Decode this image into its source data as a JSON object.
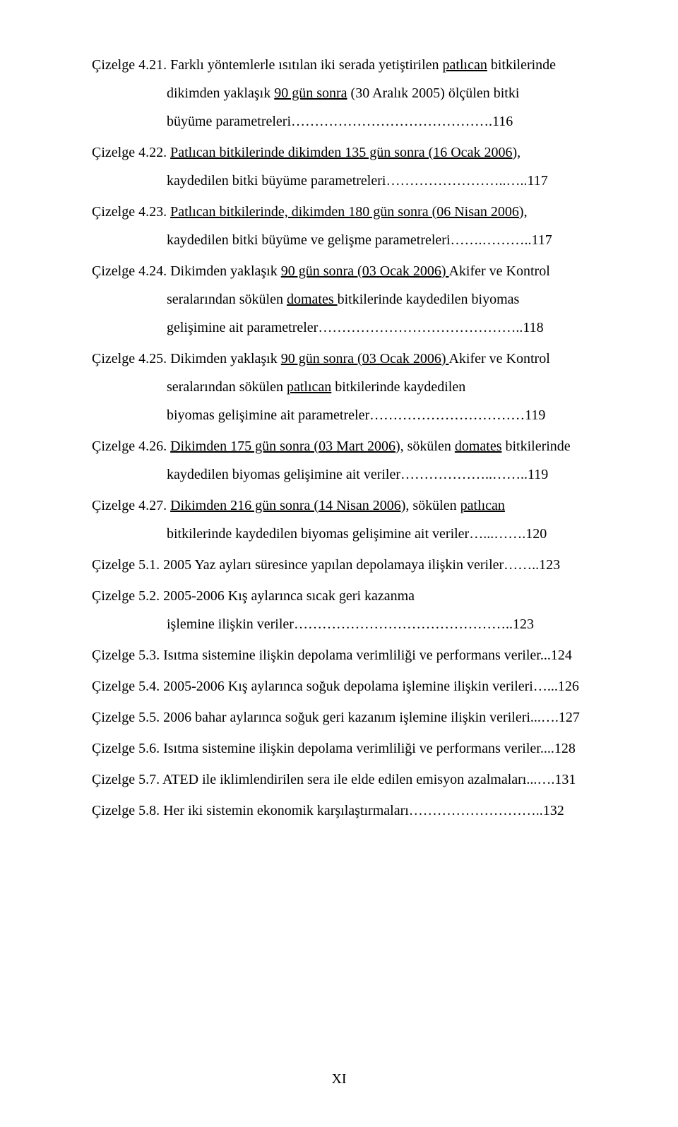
{
  "fontsize_pt": 12,
  "line_height": 2.0,
  "text_color": "#000000",
  "background_color": "#ffffff",
  "entries": [
    {
      "label": "Çizelge 4.21.",
      "segments": [
        [
          "Çizelge 4.21. Farklı yöntemlerle ısıtılan iki serada yetiştirilen ",
          false
        ],
        [
          "patlıcan",
          true
        ],
        [
          " bitkilerinde",
          false
        ]
      ],
      "cont": [
        [
          [
            "dikimden yaklaşık ",
            false
          ],
          [
            "90 gün sonra",
            true
          ],
          [
            " (30 Aralık 2005) ölçülen bitki",
            false
          ]
        ],
        [
          [
            " büyüme parametreleri…………………………………….116",
            false
          ]
        ]
      ],
      "page": "116"
    },
    {
      "label": "Çizelge 4.22.",
      "segments": [
        [
          "Çizelge 4.22. ",
          false
        ],
        [
          "Patlıcan bitkilerinde dikimden 135 gün sonra (16 Ocak 2006),",
          true
        ]
      ],
      "cont": [
        [
          [
            "kaydedilen bitki büyüme parametreleri……………………..…..117",
            false
          ]
        ]
      ],
      "page": "117"
    },
    {
      "label": "Çizelge 4.23.",
      "segments": [
        [
          "Çizelge 4.23. ",
          false
        ],
        [
          "Patlıcan bitkilerinde, dikimden 180 gün sonra (06 Nisan 2006),",
          true
        ]
      ],
      "cont": [
        [
          [
            "kaydedilen bitki büyüme ve gelişme parametreleri…….………..117",
            false
          ]
        ]
      ],
      "page": "117"
    },
    {
      "label": "Çizelge 4.24.",
      "segments": [
        [
          "Çizelge 4.24. Dikimden yaklaşık ",
          false
        ],
        [
          "90 gün sonra (03 Ocak 2006) ",
          true
        ],
        [
          "Akifer ve Kontrol",
          false
        ]
      ],
      "cont": [
        [
          [
            "seralarından sökülen ",
            false
          ],
          [
            "domates ",
            true
          ],
          [
            "bitkilerinde kaydedilen  biyomas",
            false
          ]
        ],
        [
          [
            "gelişimine ait parametreler……………………………………..118",
            false
          ]
        ]
      ],
      "page": "118"
    },
    {
      "label": "Çizelge 4.25.",
      "segments": [
        [
          "Çizelge 4.25. Dikimden yaklaşık ",
          false
        ],
        [
          "90 gün sonra (03 Ocak 2006) ",
          true
        ],
        [
          "Akifer ve Kontrol",
          false
        ]
      ],
      "cont": [
        [
          [
            "seralarından sökülen ",
            false
          ],
          [
            "patlıcan",
            true
          ],
          [
            " bitkilerinde kaydedilen",
            false
          ]
        ],
        [
          [
            "biyomas gelişimine ait parametreler……………………………119",
            false
          ]
        ]
      ],
      "page": "119"
    },
    {
      "label": "Çizelge 4.26.",
      "segments": [
        [
          "Çizelge 4.26. ",
          false
        ],
        [
          "Dikimden 175 gün sonra (03 Mart 2006),",
          true
        ],
        [
          " sökülen ",
          false
        ],
        [
          "domates",
          true
        ],
        [
          " bitkilerinde",
          false
        ]
      ],
      "cont": [
        [
          [
            "kaydedilen biyomas gelişimine ait veriler………………..……..119",
            false
          ]
        ]
      ],
      "page": "119"
    },
    {
      "label": "Çizelge 4.27.",
      "segments": [
        [
          "Çizelge 4.27. ",
          false
        ],
        [
          "Dikimden 216 gün sonra (14 Nisan 2006),",
          true
        ],
        [
          " sökülen ",
          false
        ],
        [
          "patlıcan",
          true
        ]
      ],
      "cont": [
        [
          [
            "bitkilerinde kaydedilen biyomas gelişimine ait veriler…...…….120",
            false
          ]
        ]
      ],
      "page": "120"
    },
    {
      "label": "Çizelge 5.1.",
      "segments": [
        [
          "Çizelge 5.1. 2005 Yaz ayları süresince yapılan depolamaya ilişkin veriler……..123",
          false
        ]
      ],
      "cont": [],
      "page": "123"
    },
    {
      "label": "Çizelge 5.2.",
      "segments": [
        [
          "Çizelge 5.2. 2005-2006 Kış aylarınca sıcak  geri kazanma",
          false
        ]
      ],
      "cont": [
        [
          [
            "işlemine ilişkin veriler………………………………………..123",
            false
          ]
        ]
      ],
      "page": "123"
    },
    {
      "label": "Çizelge 5.3.",
      "segments": [
        [
          "Çizelge 5.3. Isıtma sistemine ilişkin depolama verimliliği ve  performans veriler...124",
          false
        ]
      ],
      "cont": [],
      "page": "124"
    },
    {
      "label": "Çizelge 5.4.",
      "segments": [
        [
          "Çizelge 5.4. 2005-2006 Kış aylarınca soğuk depolama işlemine ilişkin verileri…...126",
          false
        ]
      ],
      "cont": [],
      "page": "126"
    },
    {
      "label": "Çizelge 5.5.",
      "segments": [
        [
          "Çizelge 5.5. 2006 bahar aylarınca soğuk geri kazanım işlemine ilişkin verileri...….127",
          false
        ]
      ],
      "cont": [],
      "page": "127"
    },
    {
      "label": "Çizelge 5.6.",
      "segments": [
        [
          "Çizelge 5.6. Isıtma sistemine ilişkin depolama verimliliği ve  performans veriler....128",
          false
        ]
      ],
      "cont": [],
      "page": "128"
    },
    {
      "label": "Çizelge 5.7.",
      "segments": [
        [
          "Çizelge 5.7. ATED ile iklimlendirilen sera ile elde edilen emisyon azalmaları...….131",
          false
        ]
      ],
      "cont": [],
      "page": "131"
    },
    {
      "label": "Çizelge 5.8.",
      "segments": [
        [
          "Çizelge 5.8. Her iki sistemin ekonomik karşılaştırmaları………………………..132",
          false
        ]
      ],
      "cont": [],
      "page": "132"
    }
  ],
  "page_number": "XI"
}
